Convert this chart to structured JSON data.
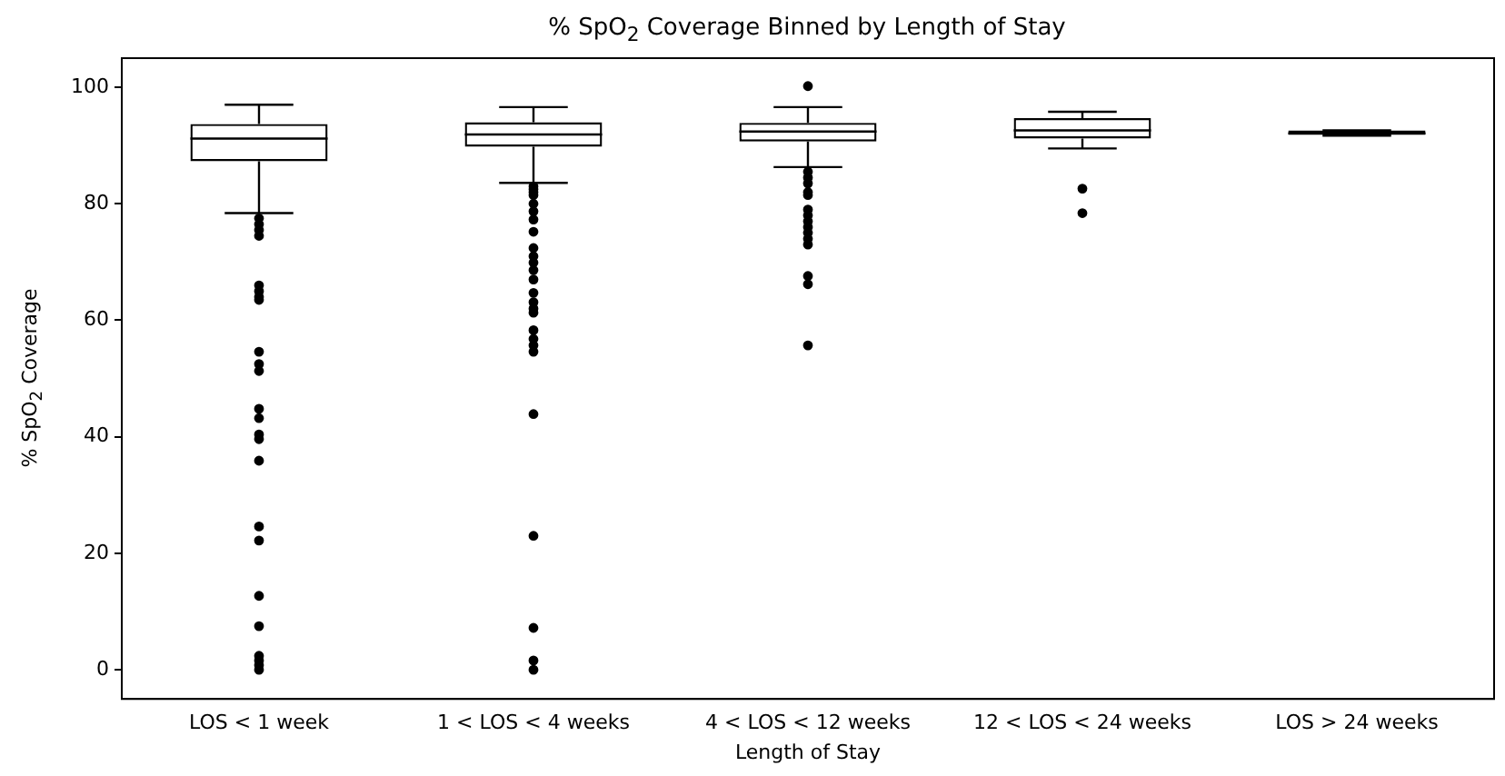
{
  "chart_data": {
    "type": "box",
    "title": "% SpO$_{2}$ Coverage Binned by Length of Stay",
    "xlabel": "Length of Stay",
    "ylabel": "% SpO$_{2}$ Coverage",
    "categories": [
      "LOS < 1 week",
      "1 < LOS < 4 weeks",
      "4 < LOS < 12 weeks",
      "12 < LOS < 24 weeks",
      "LOS > 24 weeks"
    ],
    "boxes": [
      {
        "low": 78.4,
        "q1": 87.3,
        "median": 91.2,
        "q3": 93.7,
        "high": 97.0,
        "outliers": [
          77.5,
          76.5,
          75.5,
          74.5,
          66,
          65,
          64,
          63.5,
          54.6,
          52.5,
          51.3,
          44.8,
          43.2,
          40.4,
          39.6,
          35.9,
          24.6,
          22.2,
          12.7,
          7.5,
          2.4,
          1.6,
          0.8,
          0
        ]
      },
      {
        "low": 83.6,
        "q1": 89.8,
        "median": 91.9,
        "q3": 94.0,
        "high": 96.6,
        "outliers": [
          83,
          82.5,
          82,
          81.5,
          80,
          78.7,
          77.3,
          75.2,
          72.4,
          71,
          69.9,
          68.6,
          67,
          64.7,
          63.1,
          62,
          61.3,
          58.3,
          56.8,
          55.7,
          54.6,
          43.9,
          23,
          7.2,
          1.6,
          0
        ]
      },
      {
        "low": 86.3,
        "q1": 90.7,
        "median": 92.4,
        "q3": 93.9,
        "high": 96.6,
        "outliers": [
          100.2,
          85.5,
          84.5,
          83.5,
          82,
          81.5,
          79,
          78,
          77,
          76,
          75,
          74,
          73,
          67.6,
          66.2,
          55.7
        ]
      },
      {
        "low": 89.5,
        "q1": 91.2,
        "median": 92.6,
        "q3": 94.7,
        "high": 95.8,
        "outliers": [
          82.6,
          78.4
        ]
      },
      {
        "low": 91.7,
        "q1": 91.8,
        "median": 92.1,
        "q3": 92.6,
        "high": 92.6,
        "outliers": null
      }
    ],
    "color": "#000000",
    "marker": "circle",
    "ylim": [
      -5,
      105
    ],
    "yticks": [
      0,
      20,
      40,
      60,
      80,
      100
    ],
    "grid": false,
    "legend": false
  }
}
